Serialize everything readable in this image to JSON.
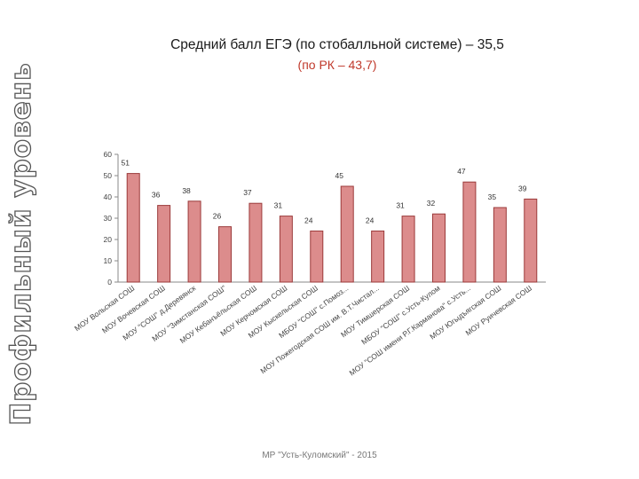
{
  "side_title": "Профильный уровень",
  "footer": "МР \"Усть-Куломский\" - 2015",
  "chart_data": {
    "type": "bar",
    "title": "Средний балл ЕГЭ (по стобалльной системе) – 35,5",
    "subtitle": "(по РК – 43,7)",
    "ylim": [
      0,
      60
    ],
    "yticks": [
      0,
      10,
      20,
      30,
      40,
      50,
      60
    ],
    "grid": false,
    "legend": "none",
    "colors": {
      "bar_fill": "#dc8c8c",
      "bar_stroke": "#9b3a3a",
      "axis": "#8a8a8a",
      "subtitle": "#c0392b"
    },
    "categories": [
      "МОУ Вольская СОШ",
      "МОУ Вочевская СОШ",
      "МОУ \"СОШ\" д.Деревянск",
      "МОУ \"Зимстанская СОШ\"",
      "МОУ Кебанъёльская СОШ",
      "МОУ Керчомская СОШ",
      "МОУ Кыскельская СОШ",
      "МБОУ \"СОШ\" с.Помоздино",
      "МОУ Пожегодская СОШ им. В.Т.Чисталёва",
      "МОУ Тимшерская СОШ",
      "МБОУ \"СОШ\" с.Усть-Кулом",
      "МОУ \"СОШ имени Р.Г.Карманова\" с.Усть-Кулом",
      "МОУ Югыдъягская СОШ",
      "МОУ Руичевская СОШ"
    ],
    "tick_labels": [
      "МОУ Вольская СОШ",
      "МОУ Вочевская СОШ",
      "МОУ \"СОШ\" д.Деревянск",
      "МОУ \"Зимстанская СОШ\"",
      "МОУ Кебанъёльская СОШ",
      "МОУ Керчомская СОШ",
      "МОУ Кыскельская СОШ",
      "МБОУ \"СОШ\" с.Помоз...",
      "МОУ Пожегодская СОШ им. В.Т.Чистал...",
      "МОУ Тимшерская СОШ",
      "МБОУ \"СОШ\" с.Усть-Кулом",
      "МОУ \"СОШ имени Р.Г.Карманова\" с.Усть...",
      "МОУ Югыдъягская СОШ",
      "МОУ Руичевская СОШ"
    ],
    "values": [
      51,
      36,
      38,
      26,
      37,
      31,
      24,
      45,
      24,
      31,
      32,
      47,
      35,
      39
    ]
  }
}
